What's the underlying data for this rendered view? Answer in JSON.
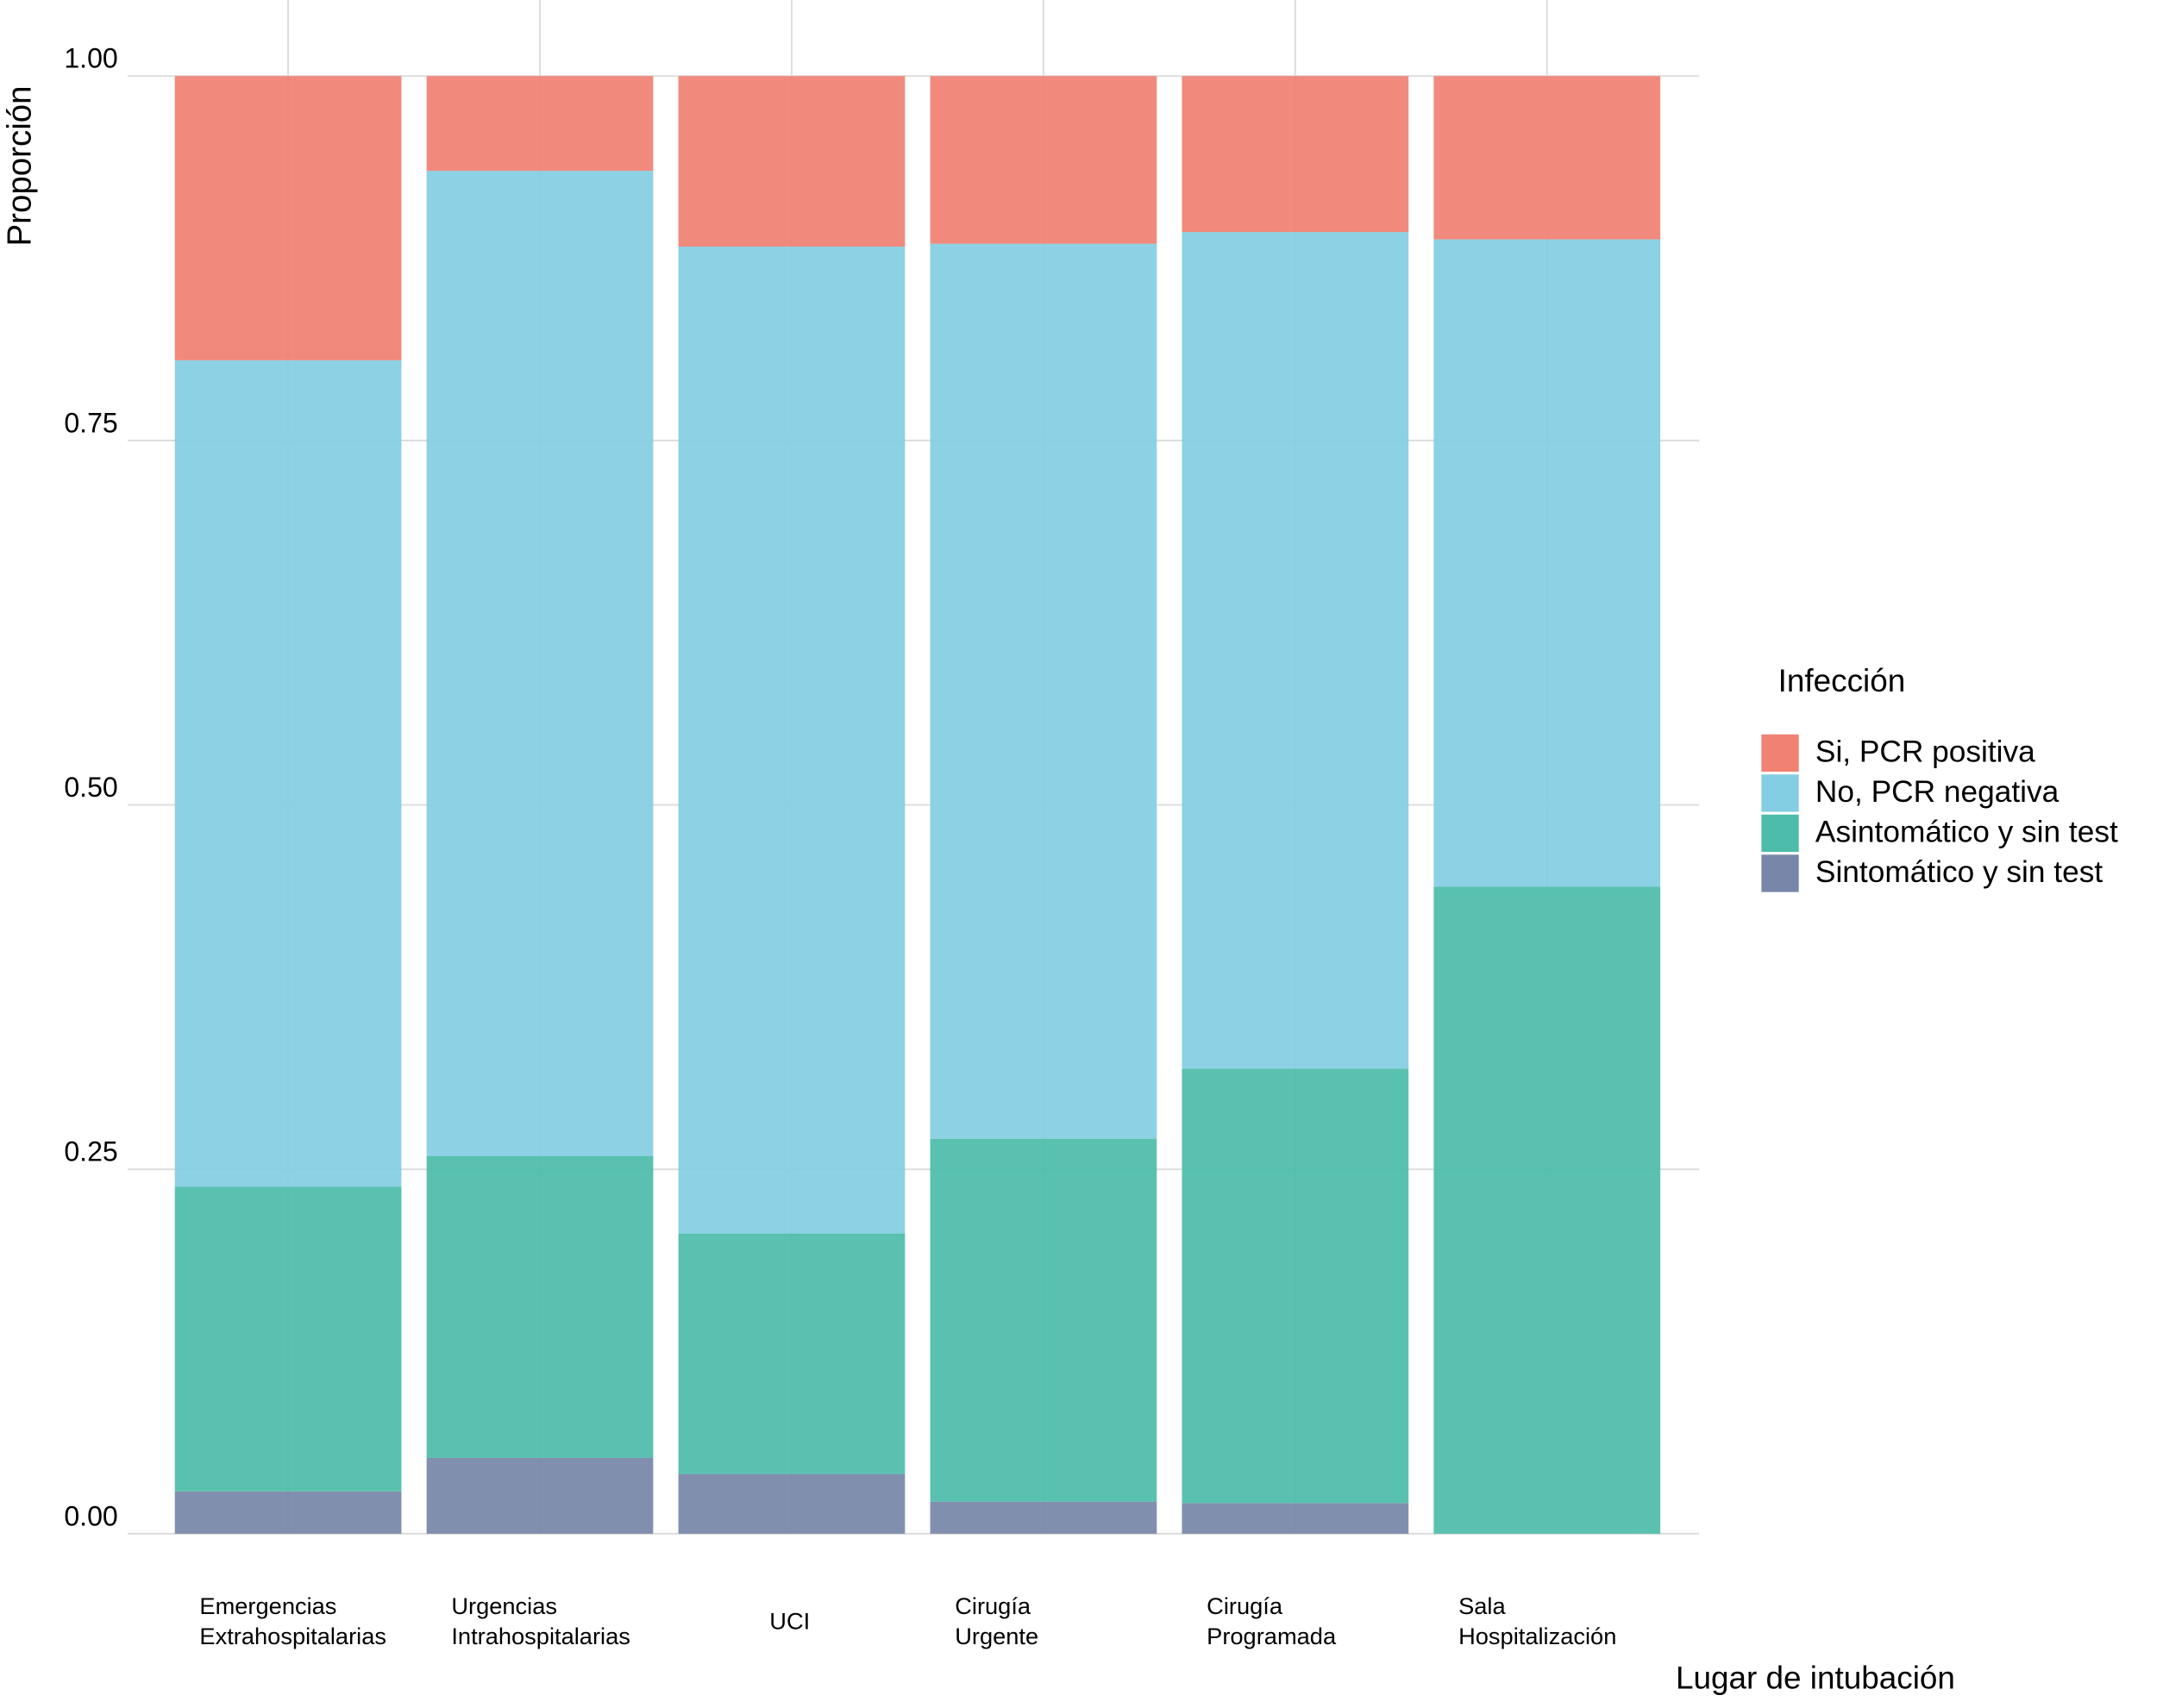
{
  "chart_data": {
    "type": "stacked_bar",
    "ylabel": "Proporción",
    "xlabel": "Lugar de intubación",
    "legend_title": "Infección",
    "legend_position": "right",
    "grid": true,
    "categories": [
      [
        "Emergencias",
        "Extrahospitalarias"
      ],
      [
        "Urgencias",
        "Intrahospitalarias"
      ],
      [
        "UCI"
      ],
      [
        "Cirugía",
        "Urgente"
      ],
      [
        "Cirugía",
        "Programada"
      ],
      [
        "Sala",
        "Hospitalización"
      ]
    ],
    "ylim": [
      0,
      1
    ],
    "yticks": [
      {
        "value": 0,
        "label": "0.00"
      },
      {
        "value": 0.25,
        "label": "0.25"
      },
      {
        "value": 0.5,
        "label": "0.50"
      },
      {
        "value": 0.75,
        "label": "0.75"
      },
      {
        "value": 1,
        "label": "1.00"
      }
    ],
    "series": [
      {
        "name": "Sintomático y sin test",
        "color": "#7786a9",
        "values": [
          0.029,
          0.052,
          0.041,
          0.022,
          0.021,
          0
        ]
      },
      {
        "name": "Asintomático y sin test",
        "color": "#4dbcaa",
        "values": [
          0.209,
          0.207,
          0.165,
          0.249,
          0.298,
          0.444
        ]
      },
      {
        "name": "No, PCR negativa",
        "color": "#83cee2",
        "values": [
          0.567,
          0.676,
          0.677,
          0.614,
          0.574,
          0.444
        ]
      },
      {
        "name": "Si, PCR positiva",
        "color": "#f08173",
        "values": [
          0.195,
          0.065,
          0.117,
          0.115,
          0.107,
          0.112
        ]
      }
    ]
  }
}
